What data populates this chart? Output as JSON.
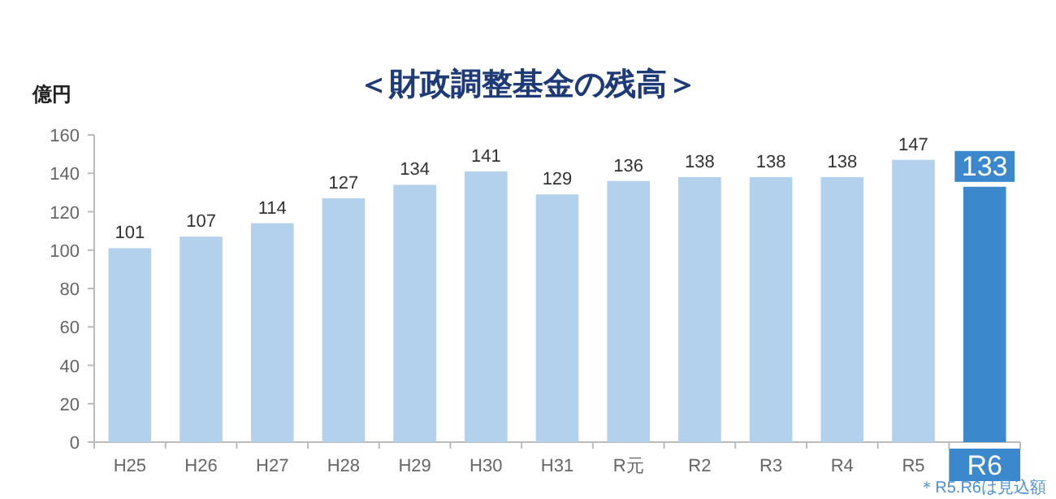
{
  "chart_data": {
    "type": "bar",
    "title": "＜財政調整基金の残高＞",
    "ylabel": "億円",
    "categories": [
      "H25",
      "H26",
      "H27",
      "H28",
      "H29",
      "H30",
      "H31",
      "R元",
      "R2",
      "R3",
      "R4",
      "R5",
      "R6"
    ],
    "values": [
      101,
      107,
      114,
      127,
      134,
      141,
      129,
      136,
      138,
      138,
      138,
      147,
      133
    ],
    "colors": [
      "#b3d0ec",
      "#b3d0ec",
      "#b3d0ec",
      "#b3d0ec",
      "#b3d0ec",
      "#b3d0ec",
      "#b3d0ec",
      "#b3d0ec",
      "#b3d0ec",
      "#b3d0ec",
      "#b3d0ec",
      "#b3d0ec",
      "#3b88cd"
    ],
    "ylim": [
      0,
      160
    ],
    "yticks": [
      0,
      20,
      40,
      60,
      80,
      100,
      120,
      140,
      160
    ],
    "grid": false,
    "data_labels": true,
    "annotations": [
      "＊R5.R6は見込額"
    ]
  }
}
